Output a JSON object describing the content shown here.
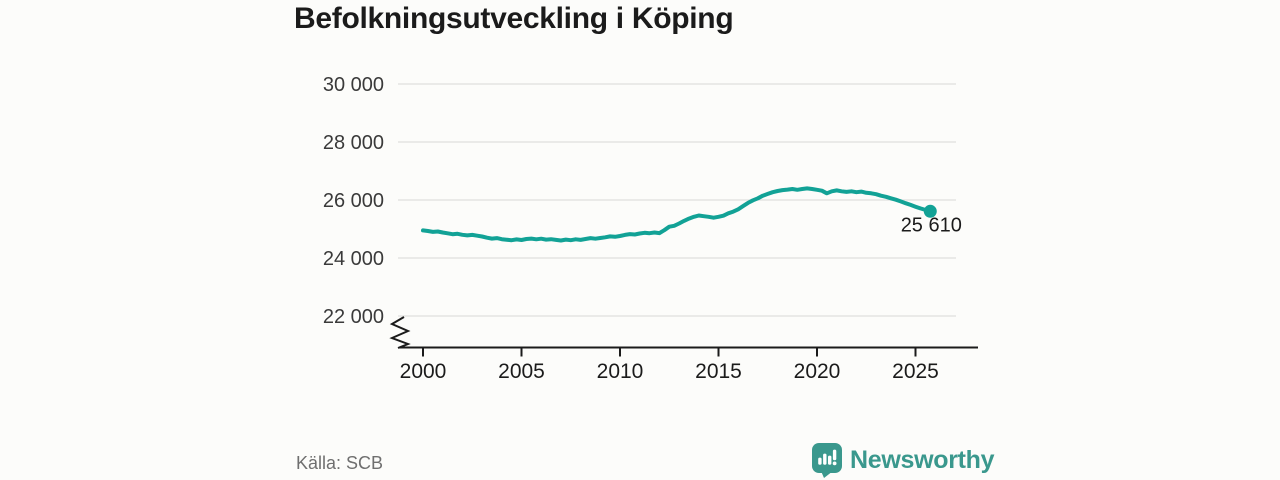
{
  "header": {
    "title": "Befolkningsutveckling i Köping"
  },
  "footer": {
    "source": "Källa: SCB",
    "brand": "Newsworthy"
  },
  "colors": {
    "line": "#12a296",
    "logo_teal": "#3a988d",
    "grid": "#dedede",
    "axis": "#1b1b1b",
    "y_label": "#3a3a3a",
    "x_label": "#1b1b1b",
    "title": "#1b1b1b",
    "source": "#6f6f6f",
    "end_label": "#1b1b1b",
    "background": "#fcfcfa"
  },
  "chart_data": {
    "type": "line",
    "title": "Befolkningsutveckling i Köping",
    "xlabel": "",
    "ylabel": "",
    "grid": "horizontal",
    "legend": "none",
    "axis_break_bottom_left": true,
    "end_label": "25 610",
    "end_value": 25610,
    "xlim": [
      1998.7,
      2027.2
    ],
    "ylim": [
      21600,
      30400
    ],
    "y_ticks": [
      {
        "value": 30000,
        "label": "30 000"
      },
      {
        "value": 28000,
        "label": "28 000"
      },
      {
        "value": 26000,
        "label": "26 000"
      },
      {
        "value": 24000,
        "label": "24 000"
      },
      {
        "value": 22000,
        "label": "22 000"
      }
    ],
    "x_ticks": [
      {
        "value": 2000,
        "label": "2000"
      },
      {
        "value": 2005,
        "label": "2005"
      },
      {
        "value": 2010,
        "label": "2010"
      },
      {
        "value": 2015,
        "label": "2015"
      },
      {
        "value": 2020,
        "label": "2020"
      },
      {
        "value": 2025,
        "label": "2025"
      }
    ],
    "series": [
      {
        "name": "population",
        "points": [
          [
            2000.0,
            24950
          ],
          [
            2000.25,
            24930
          ],
          [
            2000.5,
            24900
          ],
          [
            2000.75,
            24915
          ],
          [
            2001.0,
            24880
          ],
          [
            2001.25,
            24850
          ],
          [
            2001.5,
            24820
          ],
          [
            2001.75,
            24835
          ],
          [
            2002.0,
            24800
          ],
          [
            2002.25,
            24780
          ],
          [
            2002.5,
            24795
          ],
          [
            2002.75,
            24770
          ],
          [
            2003.0,
            24740
          ],
          [
            2003.25,
            24700
          ],
          [
            2003.5,
            24670
          ],
          [
            2003.75,
            24685
          ],
          [
            2004.0,
            24650
          ],
          [
            2004.25,
            24630
          ],
          [
            2004.5,
            24615
          ],
          [
            2004.75,
            24640
          ],
          [
            2005.0,
            24620
          ],
          [
            2005.25,
            24655
          ],
          [
            2005.5,
            24670
          ],
          [
            2005.75,
            24645
          ],
          [
            2006.0,
            24665
          ],
          [
            2006.25,
            24635
          ],
          [
            2006.5,
            24650
          ],
          [
            2006.75,
            24625
          ],
          [
            2007.0,
            24605
          ],
          [
            2007.25,
            24635
          ],
          [
            2007.5,
            24615
          ],
          [
            2007.75,
            24645
          ],
          [
            2008.0,
            24625
          ],
          [
            2008.25,
            24655
          ],
          [
            2008.5,
            24685
          ],
          [
            2008.75,
            24665
          ],
          [
            2009.0,
            24690
          ],
          [
            2009.25,
            24715
          ],
          [
            2009.5,
            24745
          ],
          [
            2009.75,
            24730
          ],
          [
            2010.0,
            24760
          ],
          [
            2010.25,
            24795
          ],
          [
            2010.5,
            24825
          ],
          [
            2010.75,
            24810
          ],
          [
            2011.0,
            24845
          ],
          [
            2011.25,
            24870
          ],
          [
            2011.5,
            24855
          ],
          [
            2011.75,
            24880
          ],
          [
            2012.0,
            24860
          ],
          [
            2012.25,
            24960
          ],
          [
            2012.5,
            25080
          ],
          [
            2012.75,
            25110
          ],
          [
            2013.0,
            25190
          ],
          [
            2013.25,
            25280
          ],
          [
            2013.5,
            25360
          ],
          [
            2013.75,
            25420
          ],
          [
            2014.0,
            25465
          ],
          [
            2014.25,
            25440
          ],
          [
            2014.5,
            25420
          ],
          [
            2014.75,
            25390
          ],
          [
            2015.0,
            25420
          ],
          [
            2015.25,
            25460
          ],
          [
            2015.5,
            25540
          ],
          [
            2015.75,
            25600
          ],
          [
            2016.0,
            25680
          ],
          [
            2016.25,
            25790
          ],
          [
            2016.5,
            25900
          ],
          [
            2016.75,
            25990
          ],
          [
            2017.0,
            26060
          ],
          [
            2017.25,
            26150
          ],
          [
            2017.5,
            26210
          ],
          [
            2017.75,
            26270
          ],
          [
            2018.0,
            26310
          ],
          [
            2018.25,
            26340
          ],
          [
            2018.5,
            26360
          ],
          [
            2018.75,
            26380
          ],
          [
            2019.0,
            26350
          ],
          [
            2019.25,
            26380
          ],
          [
            2019.5,
            26400
          ],
          [
            2019.75,
            26380
          ],
          [
            2020.0,
            26350
          ],
          [
            2020.25,
            26320
          ],
          [
            2020.5,
            26230
          ],
          [
            2020.75,
            26300
          ],
          [
            2021.0,
            26330
          ],
          [
            2021.25,
            26300
          ],
          [
            2021.5,
            26280
          ],
          [
            2021.75,
            26300
          ],
          [
            2022.0,
            26270
          ],
          [
            2022.25,
            26290
          ],
          [
            2022.5,
            26250
          ],
          [
            2022.75,
            26230
          ],
          [
            2023.0,
            26200
          ],
          [
            2023.25,
            26150
          ],
          [
            2023.5,
            26110
          ],
          [
            2023.75,
            26060
          ],
          [
            2024.0,
            26010
          ],
          [
            2024.25,
            25950
          ],
          [
            2024.5,
            25890
          ],
          [
            2024.75,
            25830
          ],
          [
            2025.0,
            25770
          ],
          [
            2025.25,
            25710
          ],
          [
            2025.5,
            25660
          ],
          [
            2025.75,
            25610
          ]
        ]
      }
    ]
  }
}
